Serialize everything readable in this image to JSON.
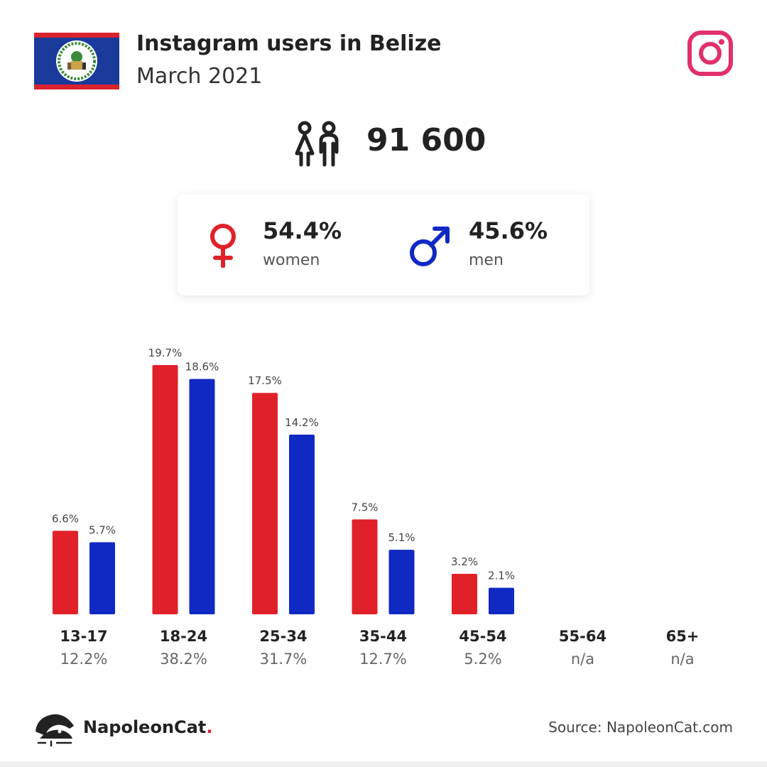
{
  "header": {
    "title": "Instagram users in Belize",
    "subtitle": "March 2021"
  },
  "total": {
    "value": "91 600"
  },
  "gender": {
    "women": {
      "value": "54.4%",
      "label": "women"
    },
    "men": {
      "value": "45.6%",
      "label": "men"
    }
  },
  "colors": {
    "women": "#e0212a",
    "men": "#1029c3",
    "instagram": "#e1306c"
  },
  "chart_data": {
    "type": "bar",
    "categories": [
      "13-17",
      "18-24",
      "25-34",
      "35-44",
      "45-54",
      "55-64",
      "65+"
    ],
    "category_totals": [
      "12.2%",
      "38.2%",
      "31.7%",
      "12.7%",
      "5.2%",
      "n/a",
      "n/a"
    ],
    "series": [
      {
        "values": [
          6.6,
          19.7,
          17.5,
          7.5,
          3.2,
          null,
          null
        ],
        "labels": [
          "6.6%",
          "19.7%",
          "17.5%",
          "7.5%",
          "3.2%",
          "",
          ""
        ]
      },
      {
        "values": [
          5.7,
          18.6,
          14.2,
          5.1,
          2.1,
          null,
          null
        ],
        "labels": [
          "5.7%",
          "18.6%",
          "14.2%",
          "5.1%",
          "2.1%",
          "",
          ""
        ]
      }
    ],
    "ylim": [
      0,
      19.7
    ],
    "grid": false,
    "title": "",
    "xlabel": "",
    "ylabel": ""
  },
  "footer": {
    "brand": "NapoleonCat",
    "brand_dot": ".",
    "source": "Source: NapoleonCat.com"
  }
}
